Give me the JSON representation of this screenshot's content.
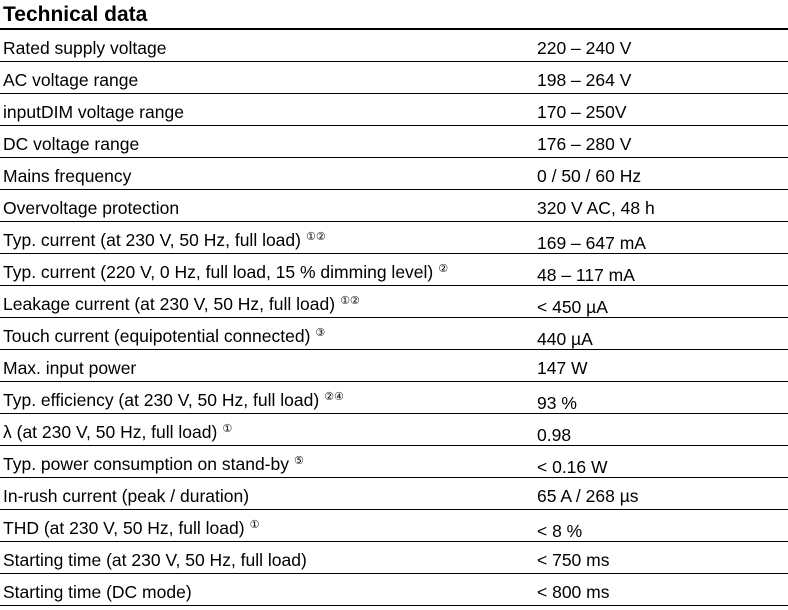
{
  "title": "Technical data",
  "rows": [
    {
      "label": "Rated supply voltage",
      "notes": "",
      "value": "220 – 240 V"
    },
    {
      "label": "AC voltage range",
      "notes": "",
      "value": "198 – 264 V"
    },
    {
      "label": "inputDIM voltage range",
      "notes": "",
      "value": "170 – 250V"
    },
    {
      "label": "DC voltage range",
      "notes": "",
      "value": "176 – 280 V"
    },
    {
      "label": "Mains frequency",
      "notes": "",
      "value": "0 / 50 / 60 Hz"
    },
    {
      "label": "Overvoltage protection",
      "notes": "",
      "value": "320 V AC, 48 h"
    },
    {
      "label": "Typ. current (at 230 V, 50 Hz, full load)",
      "notes": "①②",
      "value": "169 – 647 mA"
    },
    {
      "label": "Typ. current (220 V, 0 Hz, full load, 15 % dimming level)",
      "notes": "②",
      "value": "48 – 117 mA"
    },
    {
      "label": "Leakage current (at 230 V, 50 Hz, full load)",
      "notes": "①②",
      "value": "< 450 µA"
    },
    {
      "label": "Touch current (equipotential connected)",
      "notes": "③",
      "value": "440 µA"
    },
    {
      "label": "Max. input power",
      "notes": "",
      "value": "147 W"
    },
    {
      "label": "Typ. efficiency (at 230 V, 50 Hz, full load)",
      "notes": "②④",
      "value": "93 %"
    },
    {
      "label": "λ (at 230 V, 50 Hz, full load)",
      "notes": "①",
      "value": "0.98"
    },
    {
      "label": "Typ. power consumption on stand-by",
      "notes": "⑤",
      "value": "< 0.16 W"
    },
    {
      "label": "In-rush current (peak / duration)",
      "notes": "",
      "value": "65 A / 268 µs"
    },
    {
      "label": "THD (at 230 V, 50 Hz, full load)",
      "notes": "①",
      "value": "< 8 %"
    },
    {
      "label": "Starting time (at 230 V, 50 Hz, full load)",
      "notes": "",
      "value": "< 750 ms"
    },
    {
      "label": "Starting time (DC mode)",
      "notes": "",
      "value": "< 800 ms"
    }
  ]
}
